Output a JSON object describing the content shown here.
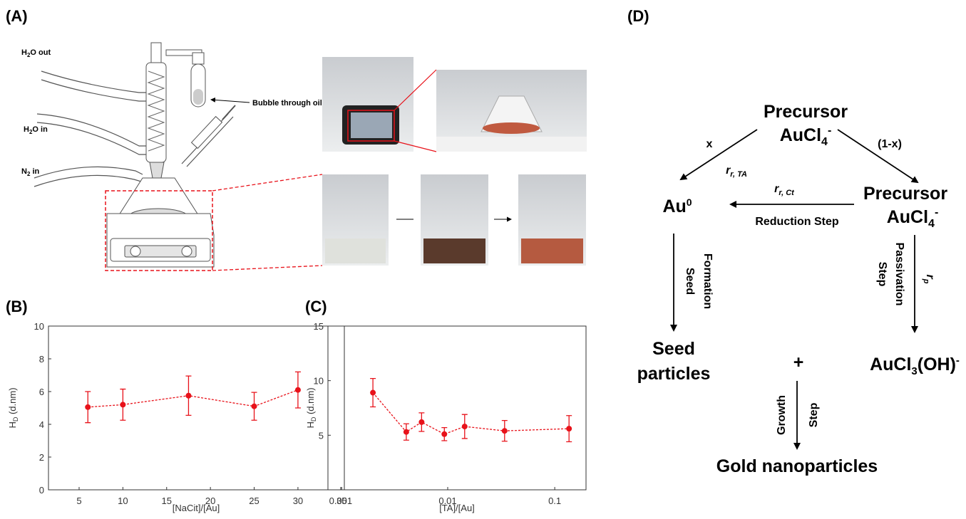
{
  "panels": {
    "a": "(A)",
    "b": "(B)",
    "c": "(C)",
    "d": "(D)"
  },
  "apparatus": {
    "h2o_out": [
      "H",
      "2",
      "O out"
    ],
    "h2o_in": [
      "H",
      "2",
      "O in"
    ],
    "n2_in": [
      "N",
      "2",
      " in"
    ],
    "bubble": "Bubble through oil"
  },
  "chart_data": [
    {
      "type": "line",
      "xlabel": "[NaCit]/[Au]",
      "ylabel": [
        "H",
        "D",
        " (d.nm)"
      ],
      "x": [
        6,
        10,
        17.5,
        25,
        30
      ],
      "series": [
        {
          "color": "#e8121a",
          "values": [
            5.05,
            5.2,
            5.75,
            5.1,
            6.1
          ],
          "errors": [
            0.95,
            0.95,
            1.2,
            0.85,
            1.1
          ]
        }
      ],
      "xlim": [
        1.5,
        35.3
      ],
      "xticks": [
        5,
        10,
        15,
        20,
        25,
        30,
        35
      ],
      "ylim": [
        0,
        10
      ],
      "yticks": [
        0,
        2,
        4,
        6,
        8,
        10
      ],
      "line_style": "dashed"
    },
    {
      "type": "line",
      "xlabel": "[TA]/[Au]",
      "ylabel": [
        "H",
        "D",
        " (d.nm)"
      ],
      "log_x": true,
      "x": [
        0.002,
        0.0041,
        0.0057,
        0.0093,
        0.0144,
        0.034,
        0.136
      ],
      "series": [
        {
          "color": "#e8121a",
          "values": [
            8.9,
            5.3,
            6.2,
            5.1,
            5.8,
            5.4,
            5.6
          ],
          "errors": [
            1.3,
            0.75,
            0.85,
            0.6,
            1.1,
            0.95,
            1.2
          ]
        }
      ],
      "xlim": [
        0.00076,
        0.196
      ],
      "xticks": [
        0.001,
        0.01,
        0.1
      ],
      "ylim": [
        0,
        15
      ],
      "yticks": [
        5,
        10,
        15
      ],
      "line_style": "dashed"
    }
  ],
  "diagram": {
    "top": {
      "line1": "Precursor",
      "line2": [
        "AuCl",
        "4",
        "-"
      ]
    },
    "left_branch": "x",
    "right_branch": "(1-x)",
    "rate_ta": [
      "r",
      "r, TA"
    ],
    "rate_ct": [
      "r",
      "r, Ct"
    ],
    "rate_p": [
      "r",
      "p"
    ],
    "au0": [
      "Au",
      "0"
    ],
    "right_node": {
      "line1": "Precursor",
      "line2": [
        "AuCl",
        "4",
        "-"
      ]
    },
    "reduction": "Reduction Step",
    "seed_formation": [
      "Seed",
      "Formation"
    ],
    "passivation": [
      "Passivation",
      "Step"
    ],
    "seed": [
      "Seed",
      "particles"
    ],
    "plus": "+",
    "auoh": [
      "AuCl",
      "3",
      "(OH)",
      "-"
    ],
    "growth": [
      "Growth",
      "Step"
    ],
    "gold": "Gold nanoparticles"
  }
}
